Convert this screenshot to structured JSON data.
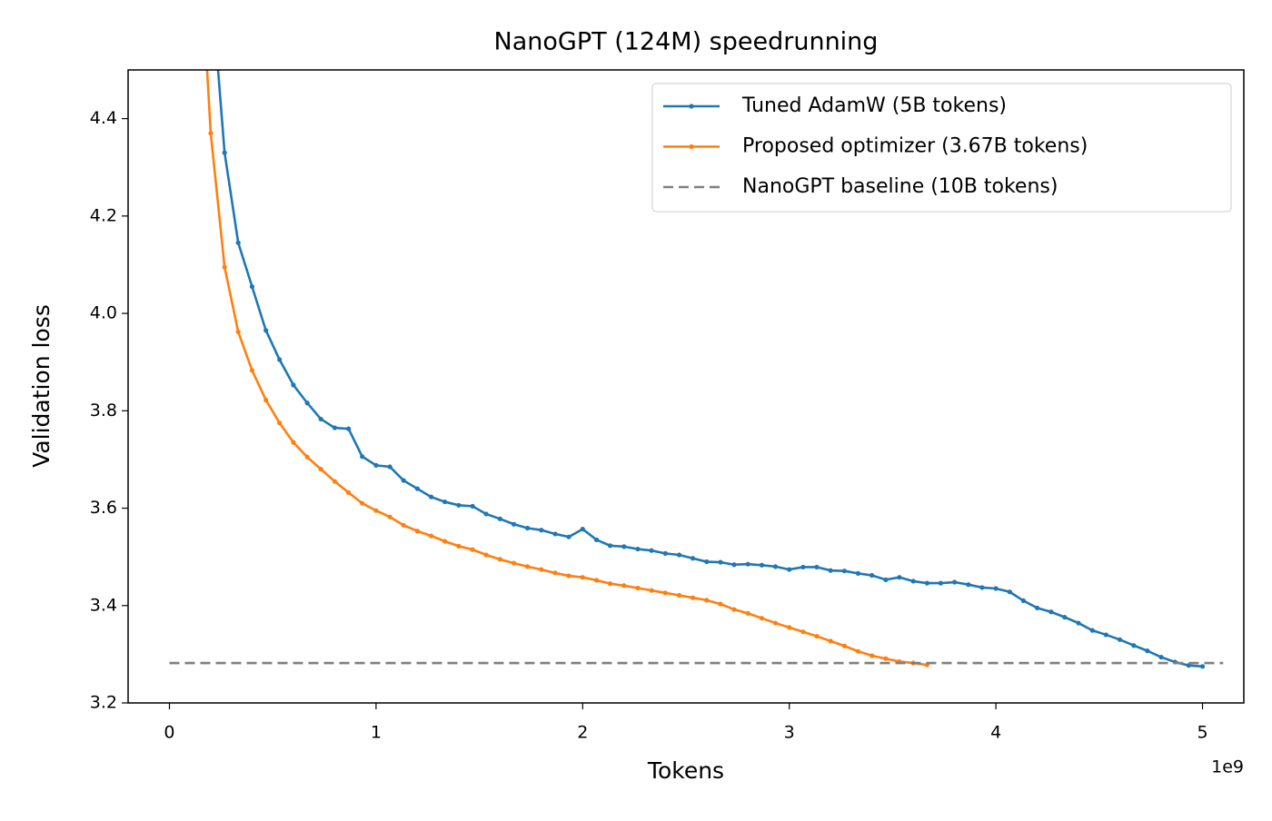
{
  "chart_data": {
    "type": "line",
    "title": "NanoGPT (124M) speedrunning",
    "x_label": "Tokens",
    "y_label": "Validation loss",
    "x_offset_label": "1e9",
    "xlim": [
      -0.2,
      5.2
    ],
    "ylim": [
      3.2,
      4.5
    ],
    "xticks": [
      0,
      1,
      2,
      3,
      4,
      5
    ],
    "yticks": [
      3.2,
      3.4,
      3.6,
      3.8,
      {
        "value": 4,
        "label": "4.0"
      },
      4.2,
      4.4
    ],
    "legend": "upper right",
    "series": [
      {
        "name": "Tuned AdamW (5B tokens)",
        "color": "#1f77b4",
        "marker": true,
        "dash": false,
        "x": [
          0.2,
          0.267,
          0.333,
          0.4,
          0.467,
          0.533,
          0.6,
          0.667,
          0.733,
          0.8,
          0.867,
          0.933,
          1.0,
          1.067,
          1.133,
          1.2,
          1.267,
          1.333,
          1.4,
          1.467,
          1.533,
          1.6,
          1.667,
          1.733,
          1.8,
          1.867,
          1.933,
          2.0,
          2.067,
          2.133,
          2.2,
          2.267,
          2.333,
          2.4,
          2.467,
          2.533,
          2.6,
          2.667,
          2.733,
          2.8,
          2.867,
          2.933,
          3.0,
          3.067,
          3.133,
          3.2,
          3.267,
          3.333,
          3.4,
          3.467,
          3.533,
          3.6,
          3.667,
          3.733,
          3.8,
          3.867,
          3.933,
          4.0,
          4.067,
          4.133,
          4.2,
          4.267,
          4.333,
          4.4,
          4.467,
          4.533,
          4.6,
          4.667,
          4.733,
          4.8,
          4.867,
          4.933,
          5.0
        ],
        "values": [
          4.69,
          4.33,
          4.145,
          4.055,
          3.965,
          3.905,
          3.853,
          3.816,
          3.783,
          3.765,
          3.763,
          3.706,
          3.688,
          3.685,
          3.657,
          3.64,
          3.623,
          3.613,
          3.606,
          3.604,
          3.588,
          3.578,
          3.567,
          3.559,
          3.555,
          3.547,
          3.541,
          3.557,
          3.535,
          3.523,
          3.521,
          3.516,
          3.513,
          3.507,
          3.504,
          3.497,
          3.49,
          3.489,
          3.484,
          3.485,
          3.483,
          3.48,
          3.474,
          3.479,
          3.479,
          3.472,
          3.471,
          3.466,
          3.462,
          3.453,
          3.458,
          3.45,
          3.446,
          3.446,
          3.448,
          3.443,
          3.437,
          3.435,
          3.428,
          3.41,
          3.395,
          3.387,
          3.376,
          3.364,
          3.349,
          3.34,
          3.33,
          3.318,
          3.307,
          3.294,
          3.284,
          3.277,
          3.275
        ]
      },
      {
        "name": "Proposed optimizer (3.67B tokens)",
        "color": "#ff7f0e",
        "marker": true,
        "dash": false,
        "x": [
          0.133,
          0.2,
          0.267,
          0.333,
          0.4,
          0.467,
          0.533,
          0.6,
          0.667,
          0.733,
          0.8,
          0.867,
          0.933,
          1.0,
          1.067,
          1.133,
          1.2,
          1.267,
          1.333,
          1.4,
          1.467,
          1.533,
          1.6,
          1.667,
          1.733,
          1.8,
          1.867,
          1.933,
          2.0,
          2.067,
          2.133,
          2.2,
          2.267,
          2.333,
          2.4,
          2.467,
          2.533,
          2.6,
          2.667,
          2.733,
          2.8,
          2.867,
          2.933,
          3.0,
          3.067,
          3.133,
          3.2,
          3.267,
          3.333,
          3.4,
          3.467,
          3.533,
          3.6,
          3.667
        ],
        "values": [
          4.86,
          4.37,
          4.095,
          3.962,
          3.883,
          3.822,
          3.775,
          3.735,
          3.705,
          3.68,
          3.655,
          3.632,
          3.61,
          3.595,
          3.582,
          3.565,
          3.553,
          3.543,
          3.532,
          3.522,
          3.515,
          3.504,
          3.495,
          3.487,
          3.48,
          3.474,
          3.467,
          3.461,
          3.458,
          3.452,
          3.445,
          3.441,
          3.436,
          3.431,
          3.426,
          3.421,
          3.416,
          3.411,
          3.403,
          3.392,
          3.384,
          3.374,
          3.364,
          3.355,
          3.346,
          3.337,
          3.327,
          3.317,
          3.306,
          3.297,
          3.291,
          3.285,
          3.282,
          3.278
        ]
      },
      {
        "name": "NanoGPT baseline (10B tokens)",
        "color": "#7f7f7f",
        "marker": false,
        "dash": true,
        "x": [
          0,
          5.1
        ],
        "values": [
          3.282,
          3.282
        ]
      }
    ]
  }
}
